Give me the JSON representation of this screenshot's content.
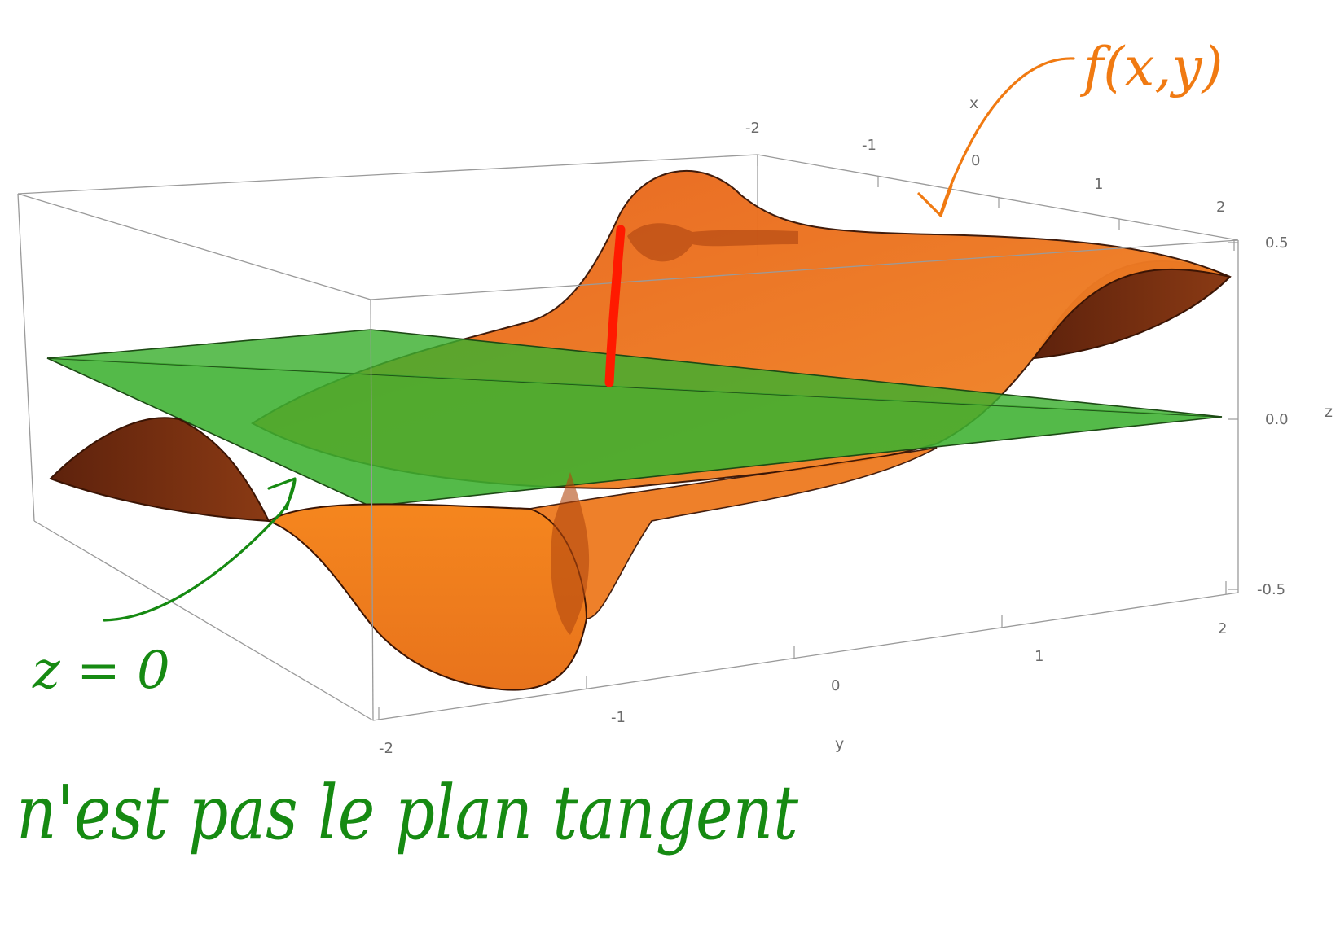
{
  "axes": {
    "x": {
      "label": "x",
      "ticks": [
        "-2",
        "-1",
        "0",
        "1",
        "2"
      ]
    },
    "y": {
      "label": "y",
      "ticks": [
        "-2",
        "-1",
        "0",
        "1",
        "2"
      ]
    },
    "z": {
      "label": "z",
      "ticks": [
        "0.5",
        "0.0",
        "-0.5"
      ]
    }
  },
  "annotations": {
    "surface_label": "f(x,y)",
    "plane_label": "z = 0",
    "note": "n'est pas le plan tangent"
  },
  "colors": {
    "surface": "#f07820",
    "surface_dark": "#7a2e0c",
    "plane": "#3cb030",
    "highlight": "#ff1a00",
    "annotation_orange": "#f07a12",
    "annotation_green": "#168a12"
  }
}
